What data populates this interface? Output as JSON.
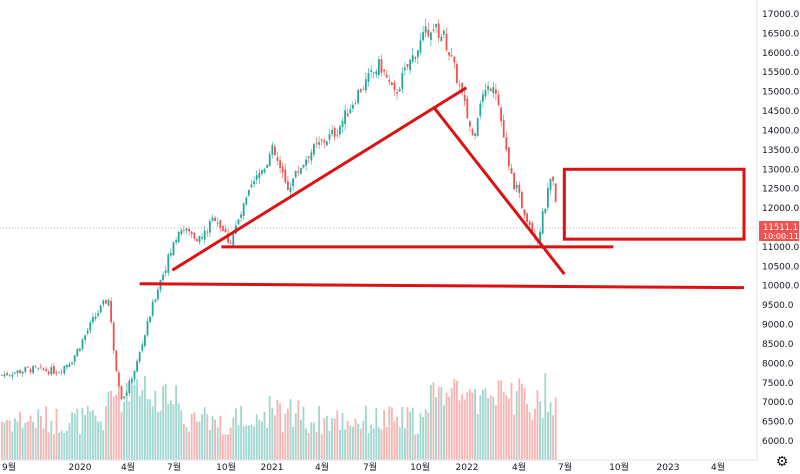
{
  "chart_data": {
    "type": "candlestick",
    "ylim": [
      5600,
      17300
    ],
    "price_ticks": [
      "17000.0",
      "16500.0",
      "16000.0",
      "15500.0",
      "15000.0",
      "14500.0",
      "14000.0",
      "13500.0",
      "13000.0",
      "12500.0",
      "12000.0",
      "11500.0",
      "11000.0",
      "10500.0",
      "10000.0",
      "9500.0",
      "9000.0",
      "8500.0",
      "8000.0",
      "7500.0",
      "7000.0",
      "6500.0",
      "6000.0"
    ],
    "time_ticks": [
      "9월",
      "2020",
      "4월",
      "7월",
      "10월",
      "2021",
      "4월",
      "7월",
      "10월",
      "2022",
      "4월",
      "7월",
      "10월",
      "2023",
      "4월"
    ],
    "last_price": {
      "value": 11511.1,
      "label": "11511.1",
      "countdown": "10:00:11",
      "color": "#ef5350"
    },
    "up_color": "#26a69a",
    "down_color": "#ef5350",
    "volume_up_color": "#9fd6cf",
    "volume_down_color": "#f6b3b1",
    "drawing_color": "#dd1111",
    "price_path": [
      [
        0,
        7700
      ],
      [
        0.04,
        7850
      ],
      [
        0.08,
        7800
      ],
      [
        0.1,
        8100
      ],
      [
        0.13,
        9150
      ],
      [
        0.15,
        9700
      ],
      [
        0.16,
        8000
      ],
      [
        0.17,
        7000
      ],
      [
        0.19,
        8000
      ],
      [
        0.22,
        10000
      ],
      [
        0.25,
        11500
      ],
      [
        0.28,
        11200
      ],
      [
        0.3,
        11800
      ],
      [
        0.32,
        11100
      ],
      [
        0.35,
        12500
      ],
      [
        0.38,
        13500
      ],
      [
        0.4,
        12500
      ],
      [
        0.43,
        13400
      ],
      [
        0.47,
        14000
      ],
      [
        0.5,
        15000
      ],
      [
        0.53,
        15700
      ],
      [
        0.55,
        14900
      ],
      [
        0.57,
        15700
      ],
      [
        0.6,
        16700
      ],
      [
        0.62,
        16400
      ],
      [
        0.64,
        15200
      ],
      [
        0.66,
        13800
      ],
      [
        0.67,
        14800
      ],
      [
        0.69,
        15300
      ],
      [
        0.71,
        13000
      ],
      [
        0.73,
        12000
      ],
      [
        0.75,
        11200
      ],
      [
        0.77,
        12800
      ],
      [
        0.78,
        11511
      ]
    ]
  },
  "drawings": [
    {
      "kind": "line",
      "name": "ascending-trendline",
      "from": [
        "2020-07",
        10400
      ],
      "to": [
        "2022-01",
        15100
      ]
    },
    {
      "kind": "line",
      "name": "descending-trendline",
      "from": [
        "2021-11",
        14600
      ],
      "to": [
        "2022-07",
        10300
      ]
    },
    {
      "kind": "line",
      "name": "support-line-11000",
      "from": [
        "2020-10",
        11000
      ],
      "to": [
        "2022-10",
        11000
      ]
    },
    {
      "kind": "line",
      "name": "support-line-10000",
      "from": [
        "2020-05",
        10050
      ],
      "to": [
        "2023-06",
        9950
      ]
    },
    {
      "kind": "rectangle",
      "name": "target-box",
      "from": [
        "2022-07",
        13000
      ],
      "to": [
        "2023-06",
        11200
      ]
    }
  ],
  "settings_icon": "gear-icon"
}
